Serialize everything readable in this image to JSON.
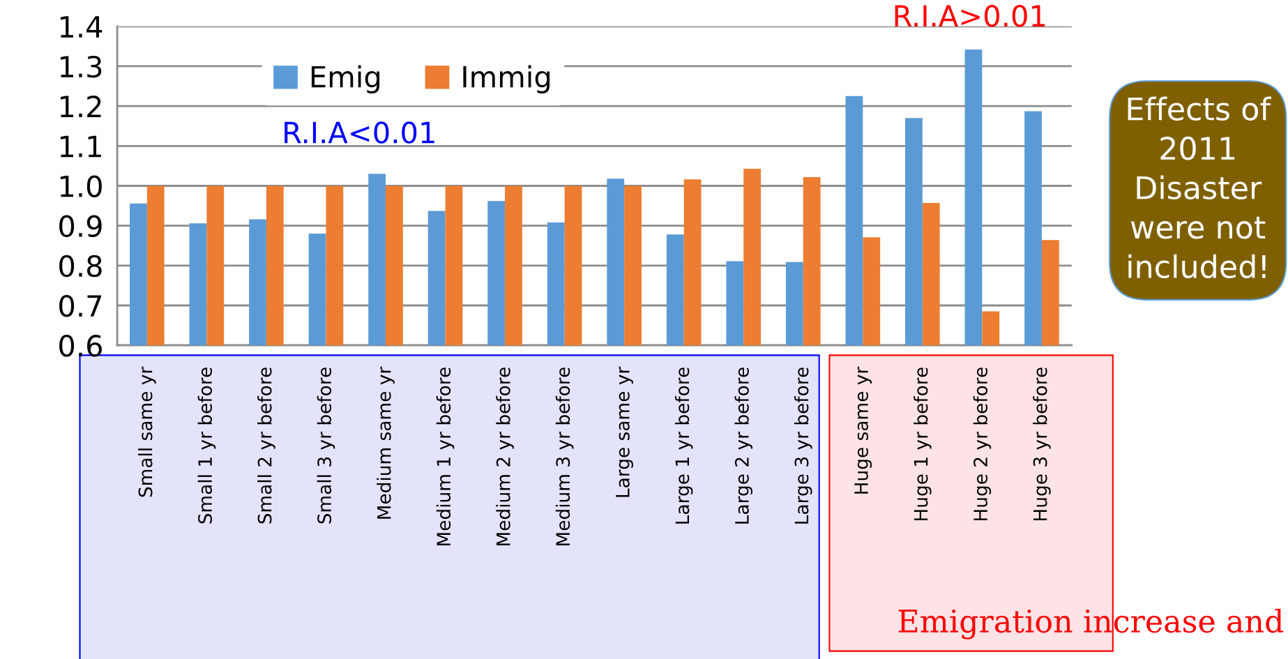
{
  "chart_data": {
    "type": "bar",
    "categories": [
      "Small same yr",
      "Small 1 yr before",
      "Small 2 yr before",
      "Small 3 yr before",
      "Medium same yr",
      "Medium 1 yr before",
      "Medium 2 yr before",
      "Medium 3 yr before",
      "Large same yr",
      "Large 1 yr before",
      "Large 2 yr before",
      "Large 3 yr before",
      "Huge same yr",
      "Huge 1 yr before",
      "Huge 2 yr before",
      "Huge 3 yr before"
    ],
    "series": [
      {
        "name": "Emig",
        "color": "#5b9bd5",
        "values": [
          0.956,
          0.906,
          0.916,
          0.88,
          1.03,
          0.937,
          0.962,
          0.908,
          1.018,
          0.878,
          0.811,
          0.809,
          1.225,
          1.17,
          1.342,
          1.187
        ]
      },
      {
        "name": "Immig",
        "color": "#ed7d31",
        "values": [
          1.0,
          1.0,
          1.0,
          1.0,
          1.0,
          1.0,
          1.0,
          1.0,
          1.0,
          1.016,
          1.043,
          1.022,
          0.871,
          0.957,
          0.685,
          0.864
        ]
      }
    ],
    "ylim": [
      0.6,
      1.4
    ],
    "yticks": [
      0.6,
      0.7,
      0.8,
      0.9,
      {
        "value": 1.0,
        "label": "1.0"
      },
      1.1,
      1.2,
      1.3,
      1.4
    ],
    "grid": "y",
    "legend": "top",
    "annotations": [
      "R.I.A<0.01",
      "R.I.A>0.01",
      "Effects of\n2011\nDisaster\nwere not\nincluded!",
      "Emigration increase and"
    ]
  }
}
